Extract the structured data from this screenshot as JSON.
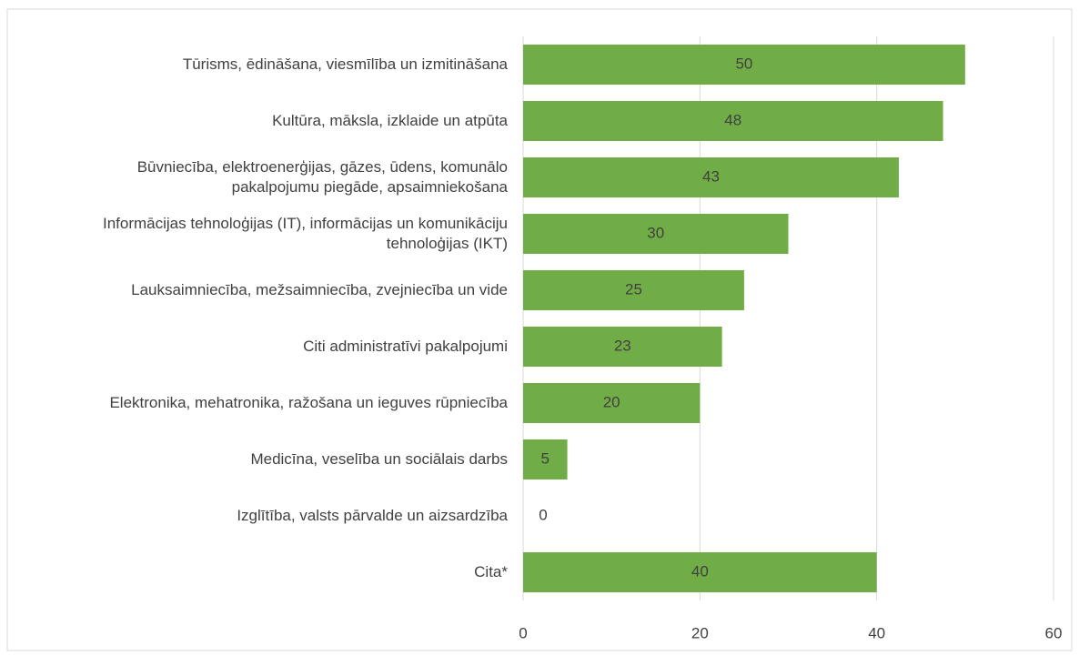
{
  "chart_data": {
    "type": "bar",
    "orientation": "horizontal",
    "categories": [
      "Tūrisms, ēdināšana, viesmīlība un izmitināšana",
      "Kultūra, māksla, izklaide un atpūta",
      "Būvniecība, elektroenerģijas, gāzes, ūdens, komunālo pakalpojumu piegāde, apsaimniekošana",
      "Informācijas tehnoloģijas (IT), informācijas un komunikāciju tehnoloģijas (IKT)",
      "Lauksaimniecība, mežsaimniecība, zvejniecība un vide",
      "Citi administratīvi pakalpojumi",
      "Elektronika, mehatronika, ražošana un ieguves rūpniecība",
      "Medicīna, veselība un sociālais darbs",
      "Izglītība, valsts pārvalde un aizsardzība",
      "Cita*"
    ],
    "values": [
      50,
      47.5,
      42.5,
      30,
      25,
      22.5,
      20,
      5,
      0,
      40
    ],
    "value_labels": [
      "50",
      "48",
      "43",
      "30",
      "25",
      "23",
      "20",
      "5",
      "0",
      "40"
    ],
    "color": "#70ad47",
    "xlim": [
      0,
      60
    ],
    "xticks": [
      0,
      20,
      40,
      60
    ],
    "grid": true
  }
}
